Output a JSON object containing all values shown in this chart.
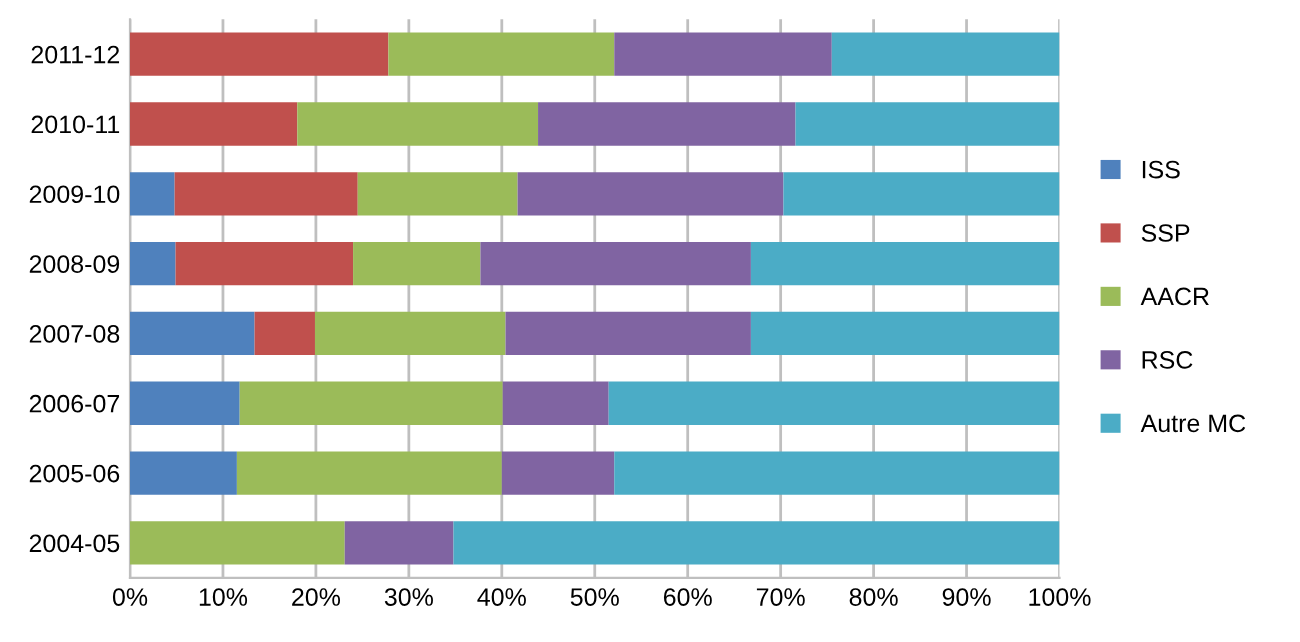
{
  "chart_data": {
    "type": "bar",
    "orientation": "horizontal",
    "stacked": true,
    "categories": [
      "2011-12",
      "2010-11",
      "2009-10",
      "2008-09",
      "2007-08",
      "2006-07",
      "2005-06",
      "2004-05"
    ],
    "series": [
      {
        "name": "ISS",
        "color": "#4f81bd",
        "values": [
          0,
          0,
          4.8,
          4.9,
          13.4,
          11.8,
          11.5,
          0
        ]
      },
      {
        "name": "SSP",
        "color": "#c0504d",
        "values": [
          27.8,
          18.0,
          19.7,
          19.1,
          6.5,
          0,
          0,
          0
        ]
      },
      {
        "name": "AACR",
        "color": "#9bbb59",
        "values": [
          24.3,
          25.9,
          17.2,
          13.7,
          20.5,
          28.3,
          28.5,
          23.1
        ]
      },
      {
        "name": "RSC",
        "color": "#8064a2",
        "values": [
          23.4,
          27.7,
          28.6,
          29.1,
          26.4,
          11.4,
          12.1,
          11.7
        ]
      },
      {
        "name": "Autre MC",
        "color": "#4bacc6",
        "values": [
          24.5,
          28.4,
          29.7,
          33.2,
          33.2,
          48.5,
          47.9,
          65.2
        ]
      }
    ],
    "xlim": [
      0,
      100
    ],
    "xticks": [
      {
        "value": 0,
        "label": "0%"
      },
      {
        "value": 10,
        "label": "10%"
      },
      {
        "value": 20,
        "label": "20%"
      },
      {
        "value": 30,
        "label": "30%"
      },
      {
        "value": 40,
        "label": "40%"
      },
      {
        "value": 50,
        "label": "50%"
      },
      {
        "value": 60,
        "label": "60%"
      },
      {
        "value": 70,
        "label": "70%"
      },
      {
        "value": 80,
        "label": "80%"
      },
      {
        "value": 90,
        "label": "90%"
      },
      {
        "value": 100,
        "label": "100%"
      }
    ],
    "grid": "x",
    "legend": "right"
  }
}
